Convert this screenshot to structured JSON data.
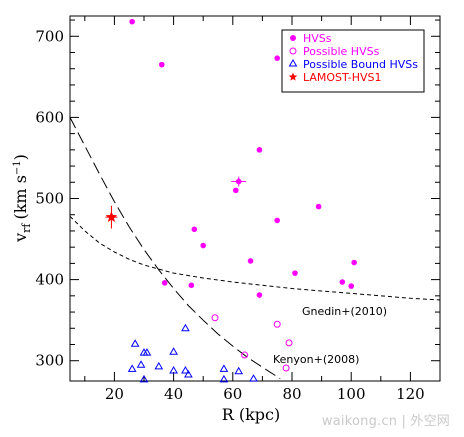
{
  "chart_data": {
    "type": "scatter",
    "xlabel": "R (kpc)",
    "ylabel": "v",
    "ylabel_sub": "rf",
    "ylabel_unit": "(km s",
    "ylabel_unit_sup": "−1",
    "ylabel_unit_close": ")",
    "xlim": [
      5,
      130
    ],
    "ylim": [
      275,
      725
    ],
    "x_ticks": [
      20,
      40,
      60,
      80,
      100,
      120
    ],
    "y_ticks": [
      300,
      400,
      500,
      600,
      700
    ],
    "legend_position": "top-right",
    "series": [
      {
        "name": "HVSs",
        "marker": "filled-circle",
        "color": "#ff00ff",
        "points": [
          {
            "x": 26,
            "y": 718
          },
          {
            "x": 36,
            "y": 665
          },
          {
            "x": 75,
            "y": 673
          },
          {
            "x": 69,
            "y": 560
          },
          {
            "x": 61,
            "y": 510
          },
          {
            "x": 75,
            "y": 473
          },
          {
            "x": 89,
            "y": 490
          },
          {
            "x": 47,
            "y": 462
          },
          {
            "x": 50,
            "y": 442
          },
          {
            "x": 66,
            "y": 423
          },
          {
            "x": 81,
            "y": 408
          },
          {
            "x": 37,
            "y": 396
          },
          {
            "x": 46,
            "y": 393
          },
          {
            "x": 69,
            "y": 381
          },
          {
            "x": 97,
            "y": 397
          },
          {
            "x": 101,
            "y": 421
          },
          {
            "x": 100,
            "y": 392
          }
        ],
        "error_points": [
          {
            "x": 62,
            "y": 521,
            "xerr": 2.5,
            "yerr": 6
          }
        ]
      },
      {
        "name": "Possible HVSs",
        "marker": "open-circle",
        "color": "#ff00ff",
        "points": [
          {
            "x": 54,
            "y": 353
          },
          {
            "x": 75,
            "y": 345
          },
          {
            "x": 79,
            "y": 322
          },
          {
            "x": 64,
            "y": 307
          },
          {
            "x": 78,
            "y": 291
          }
        ]
      },
      {
        "name": "Possible Bound HVSs",
        "marker": "open-triangle",
        "color": "#0000ff",
        "points": [
          {
            "x": 27,
            "y": 321
          },
          {
            "x": 30,
            "y": 310
          },
          {
            "x": 31,
            "y": 310
          },
          {
            "x": 40,
            "y": 311
          },
          {
            "x": 44,
            "y": 340
          },
          {
            "x": 26,
            "y": 290
          },
          {
            "x": 29,
            "y": 295
          },
          {
            "x": 35,
            "y": 293
          },
          {
            "x": 40,
            "y": 288
          },
          {
            "x": 44,
            "y": 288
          },
          {
            "x": 45,
            "y": 283
          },
          {
            "x": 30,
            "y": 277
          },
          {
            "x": 57,
            "y": 290
          },
          {
            "x": 57,
            "y": 277
          },
          {
            "x": 62,
            "y": 287
          },
          {
            "x": 67,
            "y": 278
          }
        ]
      },
      {
        "name": "LAMOST-HVS1",
        "marker": "star",
        "color": "#ff0000",
        "points": [
          {
            "x": 19,
            "y": 477,
            "xerr": 2,
            "yerr": 14
          }
        ]
      }
    ],
    "curves": [
      {
        "name": "Kenyon+(2008)",
        "style": "long-dash",
        "points": [
          [
            5,
            600
          ],
          [
            10,
            565
          ],
          [
            15,
            530
          ],
          [
            20,
            496
          ],
          [
            25,
            465
          ],
          [
            30,
            437
          ],
          [
            35,
            412
          ],
          [
            40,
            389
          ],
          [
            45,
            368
          ],
          [
            50,
            350
          ],
          [
            55,
            333
          ],
          [
            60,
            318
          ],
          [
            65,
            304
          ],
          [
            70,
            292
          ],
          [
            76,
            278
          ]
        ]
      },
      {
        "name": "Gnedin+(2010)",
        "style": "short-dash",
        "points": [
          [
            5,
            478
          ],
          [
            10,
            460
          ],
          [
            15,
            445
          ],
          [
            20,
            434
          ],
          [
            25,
            425
          ],
          [
            30,
            418
          ],
          [
            35,
            413
          ],
          [
            40,
            408
          ],
          [
            50,
            402
          ],
          [
            60,
            397
          ],
          [
            70,
            393
          ],
          [
            80,
            389
          ],
          [
            90,
            386
          ],
          [
            100,
            383
          ],
          [
            110,
            380
          ],
          [
            120,
            377
          ],
          [
            130,
            375
          ]
        ]
      }
    ],
    "annotations": [
      {
        "text": "Gnedin+(2010)",
        "x": 102,
        "y": 364
      },
      {
        "text": "Kenyon+(2008)",
        "x": 83,
        "y": 303
      }
    ]
  },
  "watermark": "waikong.cn | 外空网"
}
